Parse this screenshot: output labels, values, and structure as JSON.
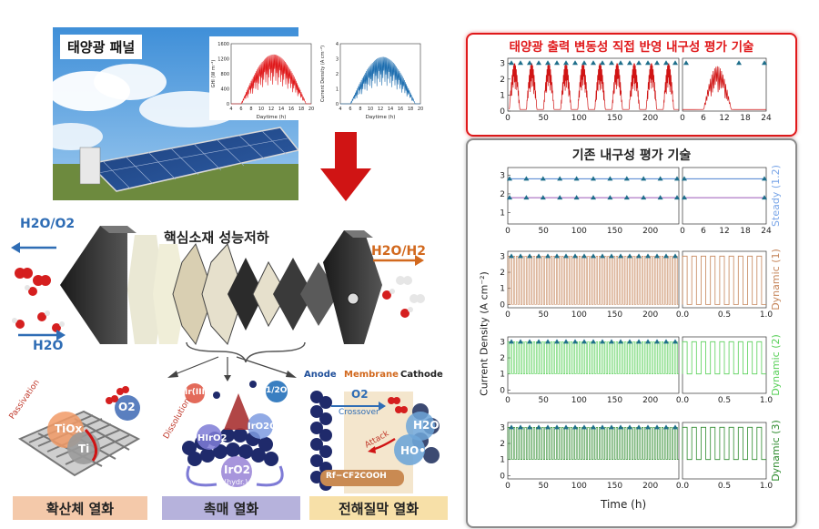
{
  "left": {
    "solar_panel_label": "태양광 패널",
    "mini_chart_1": {
      "ylabel": "GHI (W m⁻²)",
      "xlabel": "Daytime (h)",
      "yticks": [
        "0",
        "400",
        "800",
        "1200",
        "1600"
      ],
      "xticks": [
        "4",
        "6",
        "8",
        "10",
        "12",
        "14",
        "16",
        "18",
        "20"
      ],
      "color": "#e0191b"
    },
    "mini_chart_2": {
      "ylabel": "Current Density (A cm⁻²)",
      "xlabel": "Daytime (h)",
      "yticks": [
        "0",
        "1",
        "2",
        "3",
        "4"
      ],
      "xticks": [
        "4",
        "6",
        "8",
        "10",
        "12",
        "14",
        "16",
        "18",
        "20"
      ],
      "color": "#1f6fb0"
    },
    "stack": {
      "title": "핵심소재 성능저하",
      "in_left_top": "H2O/O2",
      "in_left_bottom": "H2O",
      "out_right": "H2O/H2"
    },
    "panels": [
      {
        "title": "확산체 열화",
        "bg": "#f4c9aa",
        "labels": {
          "passivation": "Passivation",
          "tiox": "TiOx",
          "ti": "Ti",
          "o2": "O2"
        }
      },
      {
        "title": "촉매 열화",
        "bg": "#b6b2dc",
        "labels": {
          "irIII": "Ir(III)",
          "half_o2": "1/2O2",
          "dissolution": "Dissolution",
          "hiro2": "HIrO2",
          "iro2oh": "IrO2OH",
          "iro2hydr": "IrO2",
          "hydr": "(hydr.)"
        }
      },
      {
        "title": "전해질막 열화",
        "bg": "#f7e0a8",
        "labels": {
          "anode": "Anode",
          "membrane": "Membrane",
          "cathode": "Cathode",
          "o2": "O2",
          "crossover": "Crossover",
          "h2o2": "H2O2",
          "attack": "Attack",
          "ho": "HO•",
          "rcf2": "Rf−CF2COOH"
        }
      }
    ]
  },
  "right": {
    "top_box": {
      "title": "태양광 출력 변동성 직접 반영 내구성 평가 기술",
      "border": "#e0191b",
      "yticks": [
        "0",
        "1",
        "2",
        "3"
      ],
      "left_xticks": [
        "0",
        "50",
        "100",
        "150",
        "200"
      ],
      "right_xticks": [
        "0",
        "6",
        "12",
        "18",
        "24"
      ]
    },
    "bottom_box": {
      "title": "기존 내구성 평가 기술",
      "border": "#8c8c8c",
      "ylabel": "Current Density (A cm⁻²)",
      "xlabel": "Time (h)",
      "rows": [
        {
          "name": "Steady (1.2)",
          "color": "#7aa6e8",
          "yticks": [
            "1",
            "2",
            "3"
          ],
          "left_xticks": [
            "0",
            "50",
            "100",
            "150",
            "200"
          ],
          "right_xticks": [
            "0",
            "6",
            "12",
            "18",
            "24"
          ]
        },
        {
          "name": "Dynamic (1)",
          "color": "#c5855a",
          "yticks": [
            "0",
            "1",
            "2",
            "3"
          ],
          "left_xticks": [
            "0",
            "50",
            "100",
            "150",
            "200"
          ],
          "right_xticks": [
            "0.0",
            "0.5",
            "1.0"
          ]
        },
        {
          "name": "Dynamic (2)",
          "color": "#58d058",
          "yticks": [
            "0",
            "1",
            "2",
            "3"
          ],
          "left_xticks": [
            "0",
            "50",
            "100",
            "150",
            "200"
          ],
          "right_xticks": [
            "0.0",
            "0.5",
            "1.0"
          ]
        },
        {
          "name": "Dynamic (3)",
          "color": "#2e8b2e",
          "yticks": [
            "0",
            "1",
            "2",
            "3"
          ],
          "left_xticks": [
            "0",
            "50",
            "100",
            "150",
            "200"
          ],
          "right_xticks": [
            "0.0",
            "0.5",
            "1.0"
          ]
        }
      ]
    }
  }
}
